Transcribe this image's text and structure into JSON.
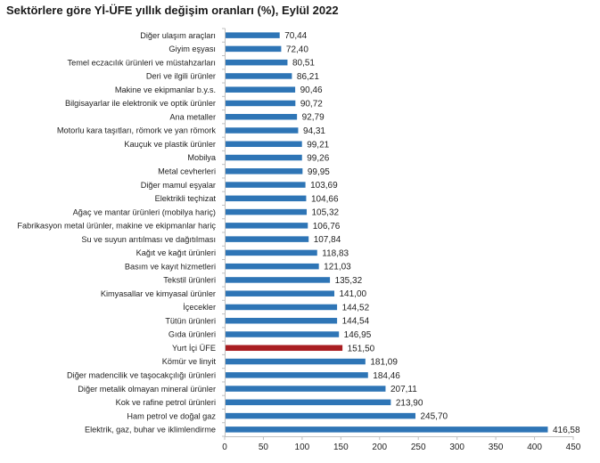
{
  "chart_data": {
    "type": "bar",
    "orientation": "horizontal",
    "title": "Sektörlere göre Yİ-ÜFE yıllık değişim oranları (%), Eylül 2022",
    "xlabel": "",
    "ylabel": "",
    "xlim": [
      0,
      450
    ],
    "xticks": [
      "0",
      "50",
      "100",
      "150",
      "200",
      "250",
      "300",
      "350",
      "400",
      "450"
    ],
    "grid": false,
    "legend": "none",
    "colors": {
      "default": "#2e75b6",
      "highlight": "#a91e22",
      "axis": "#bfbfbf"
    },
    "categories": [
      "Diğer ulaşım araçları",
      "Giyim eşyası",
      "Temel eczacılık ürünleri ve müstahzarları",
      "Deri ve ilgili ürünler",
      "Makine ve ekipmanlar b.y.s.",
      "Bilgisayarlar ile elektronik ve optik ürünler",
      "Ana metaller",
      "Motorlu kara taşıtları, römork ve yan römork",
      "Kauçuk ve plastik ürünler",
      "Mobilya",
      "Metal cevherleri",
      "Diğer mamul eşyalar",
      "Elektrikli teçhizat",
      "Ağaç ve mantar ürünleri (mobilya hariç)",
      "Fabrikasyon metal ürünler, makine ve ekipmanlar hariç",
      "Su ve suyun arıtılması ve dağıtılması",
      "Kağıt ve kağıt ürünleri",
      "Basım ve kayıt hizmetleri",
      "Tekstil ürünleri",
      "Kimyasallar ve kimyasal ürünler",
      "İçecekler",
      "Tütün ürünleri",
      "Gıda ürünleri",
      "Yurt İçi ÜFE",
      "Kömür ve linyit",
      "Diğer madencilik ve taşocakçılığı ürünleri",
      "Diğer metalik olmayan mineral ürünler",
      "Kok ve rafine petrol ürünleri",
      "Ham petrol ve doğal gaz",
      "Elektrik, gaz, buhar ve iklimlendirme"
    ],
    "values": [
      70.44,
      72.4,
      80.51,
      86.21,
      90.46,
      90.72,
      92.79,
      94.31,
      99.21,
      99.26,
      99.95,
      103.69,
      104.66,
      105.32,
      106.76,
      107.84,
      118.83,
      121.03,
      135.32,
      141.0,
      144.52,
      144.54,
      146.95,
      151.5,
      181.09,
      184.46,
      207.11,
      213.9,
      245.7,
      416.58
    ],
    "value_labels": [
      "70,44",
      "72,40",
      "80,51",
      "86,21",
      "90,46",
      "90,72",
      "92,79",
      "94,31",
      "99,21",
      "99,26",
      "99,95",
      "103,69",
      "104,66",
      "105,32",
      "106,76",
      "107,84",
      "118,83",
      "121,03",
      "135,32",
      "141,00",
      "144,52",
      "144,54",
      "146,95",
      "151,50",
      "181,09",
      "184,46",
      "207,11",
      "213,90",
      "245,70",
      "416,58"
    ],
    "highlight": [
      "Yurt İçi ÜFE"
    ]
  }
}
